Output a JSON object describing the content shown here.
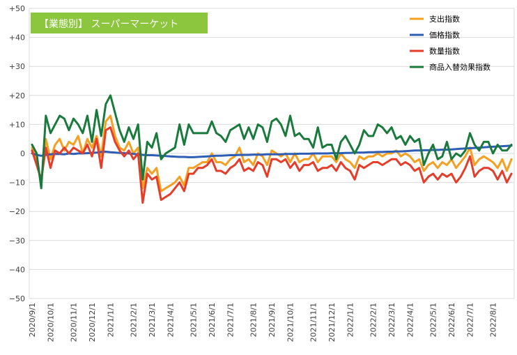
{
  "chart_data": {
    "type": "line",
    "title": "【業態別】 スーパーマーケット",
    "title_bg_color": "#8cc63f",
    "ylim": [
      -50,
      50
    ],
    "y_ticks": [
      "+50",
      "+40",
      "+30",
      "+20",
      "+10",
      "0",
      "−10",
      "−20",
      "−30",
      "−40",
      "−50"
    ],
    "y_tick_values": [
      50,
      40,
      30,
      20,
      10,
      0,
      -10,
      -20,
      -30,
      -40,
      -50
    ],
    "x_tick_labels": [
      "2020/9/1",
      "2020/10/1",
      "2020/11/1",
      "2020/12/1",
      "2021/1/1",
      "2021/2/1",
      "2021/3/1",
      "2021/4/1",
      "2021/5/1",
      "2021/6/1",
      "2021/7/1",
      "2021/8/1",
      "2021/9/1",
      "2021/10/1",
      "2021/11/1",
      "2021/12/1",
      "2022/1/1",
      "2022/2/1",
      "2022/3/1",
      "2022/4/1",
      "2022/5/1",
      "2022/6/1",
      "2022/7/1",
      "2022/8/1"
    ],
    "x_tick_week_index": [
      0,
      4,
      9,
      13,
      17,
      22,
      26,
      30,
      35,
      39,
      43,
      48,
      52,
      56,
      61,
      65,
      69,
      74,
      78,
      82,
      87,
      91,
      95,
      100
    ],
    "n_points": 105,
    "grid": true,
    "legend_position": "top-right",
    "series": [
      {
        "name": "支出指数",
        "color": "#f5a020",
        "values": [
          2,
          -3,
          -10,
          5,
          -2,
          3,
          5,
          1,
          4,
          3,
          6,
          0,
          5,
          2,
          6,
          -1,
          11,
          13,
          6,
          2,
          1,
          4,
          0,
          2,
          -12,
          -5,
          -7,
          -5,
          -13,
          -12,
          -11,
          -10,
          -8,
          -11,
          -5,
          -5,
          -4,
          -3,
          -3,
          0,
          -3,
          -3,
          -4,
          -2,
          -1,
          2,
          -3,
          -2,
          -4,
          0,
          -1,
          -4,
          1,
          0,
          -1,
          0,
          -3,
          0,
          -3,
          -2,
          -2,
          0,
          -3,
          -1,
          -1,
          -1,
          -3,
          0,
          -2,
          -3,
          -5,
          -1,
          -2,
          -1,
          -1,
          0,
          -1,
          0,
          0,
          1,
          -1,
          0,
          -1,
          -3,
          -2,
          -6,
          -4,
          -3,
          -5,
          -3,
          -4,
          -2,
          -5,
          -3,
          -1,
          2,
          -4,
          -2,
          -1,
          -2,
          -3,
          -5,
          -2,
          -6,
          -2
        ]
      },
      {
        "name": "価格指数",
        "color": "#2e5db5",
        "values": [
          0,
          -0.5,
          -0.8,
          -0.5,
          -0.3,
          -0.2,
          -0.2,
          -0.3,
          0,
          -0.2,
          0,
          0,
          0.1,
          0.2,
          0.3,
          0.5,
          0.6,
          0.4,
          0.3,
          0.2,
          0.1,
          0,
          -0.2,
          -0.3,
          -0.5,
          -0.6,
          -0.6,
          -0.7,
          -0.8,
          -0.9,
          -1.0,
          -1.1,
          -1.2,
          -1.2,
          -1.3,
          -1.3,
          -1.2,
          -1.1,
          -1.0,
          -0.9,
          -0.8,
          -0.8,
          -0.7,
          -0.6,
          -0.6,
          -0.5,
          -0.5,
          -0.5,
          -0.4,
          -0.4,
          -0.4,
          -0.3,
          -0.3,
          -0.3,
          -0.3,
          -0.2,
          -0.2,
          -0.2,
          -0.1,
          -0.1,
          -0.1,
          0,
          0,
          0,
          0,
          0.1,
          0.1,
          0.1,
          0.2,
          0.2,
          0.3,
          0.3,
          0.3,
          0.4,
          0.4,
          0.5,
          0.5,
          0.6,
          0.6,
          0.7,
          0.7,
          0.8,
          0.9,
          1.0,
          1.0,
          1.1,
          1.1,
          1.2,
          1.2,
          1.3,
          1.3,
          1.4,
          1.5,
          1.6,
          1.7,
          1.8,
          1.9,
          2.0,
          2.1,
          2.2,
          2.3,
          2.4,
          2.5,
          2.6,
          2.7
        ]
      },
      {
        "name": "数量指数",
        "color": "#e53d2a",
        "values": [
          1,
          -4,
          -9,
          2,
          -5,
          1,
          0,
          2,
          0,
          2,
          1,
          0,
          3,
          -1,
          5,
          -5,
          8,
          9,
          4,
          1,
          -1,
          1,
          -2,
          0,
          -17,
          -7,
          -9,
          -8,
          -16,
          -15,
          -14,
          -12,
          -10,
          -13,
          -7,
          -7,
          -5,
          -5,
          -4,
          -2,
          -6,
          -6,
          -7,
          -5,
          -4,
          -2,
          -6,
          -5,
          -6,
          -3,
          -4,
          -8,
          -2,
          -2,
          -3,
          -2,
          -5,
          -3,
          -6,
          -4,
          -4,
          -3,
          -6,
          -5,
          -5,
          -4,
          -6,
          -3,
          -5,
          -6,
          -9,
          -4,
          -5,
          -4,
          -3,
          -3,
          -4,
          -3,
          -2,
          -2,
          -4,
          -3,
          -4,
          -6,
          -5,
          -10,
          -8,
          -7,
          -9,
          -7,
          -8,
          -7,
          -10,
          -8,
          -5,
          -1,
          -8,
          -6,
          -5,
          -5,
          -6,
          -9,
          -6,
          -10,
          -7
        ]
      },
      {
        "name": "商品入替効果指数",
        "color": "#1a7a3c",
        "values": [
          3,
          0,
          -12,
          13,
          7,
          10,
          13,
          12,
          8,
          12,
          10,
          7,
          13,
          4,
          15,
          6,
          17,
          20,
          14,
          8,
          4,
          9,
          5,
          10,
          -9,
          4,
          2,
          7,
          -2,
          0,
          1,
          2,
          10,
          3,
          10,
          7,
          7,
          7,
          7,
          11,
          7,
          6,
          4,
          8,
          9,
          10,
          5,
          9,
          5,
          10,
          9,
          4,
          11,
          12,
          10,
          6,
          13,
          6,
          7,
          5,
          5,
          2,
          9,
          2,
          3,
          3,
          -2,
          4,
          6,
          3,
          0,
          3,
          8,
          6,
          6,
          10,
          9,
          7,
          9,
          5,
          6,
          3,
          6,
          4,
          5,
          -4,
          0,
          3,
          -2,
          -1,
          4,
          -2,
          0,
          -1,
          1,
          7,
          3,
          1,
          4,
          4,
          0,
          3,
          1,
          1,
          3
        ]
      }
    ]
  }
}
